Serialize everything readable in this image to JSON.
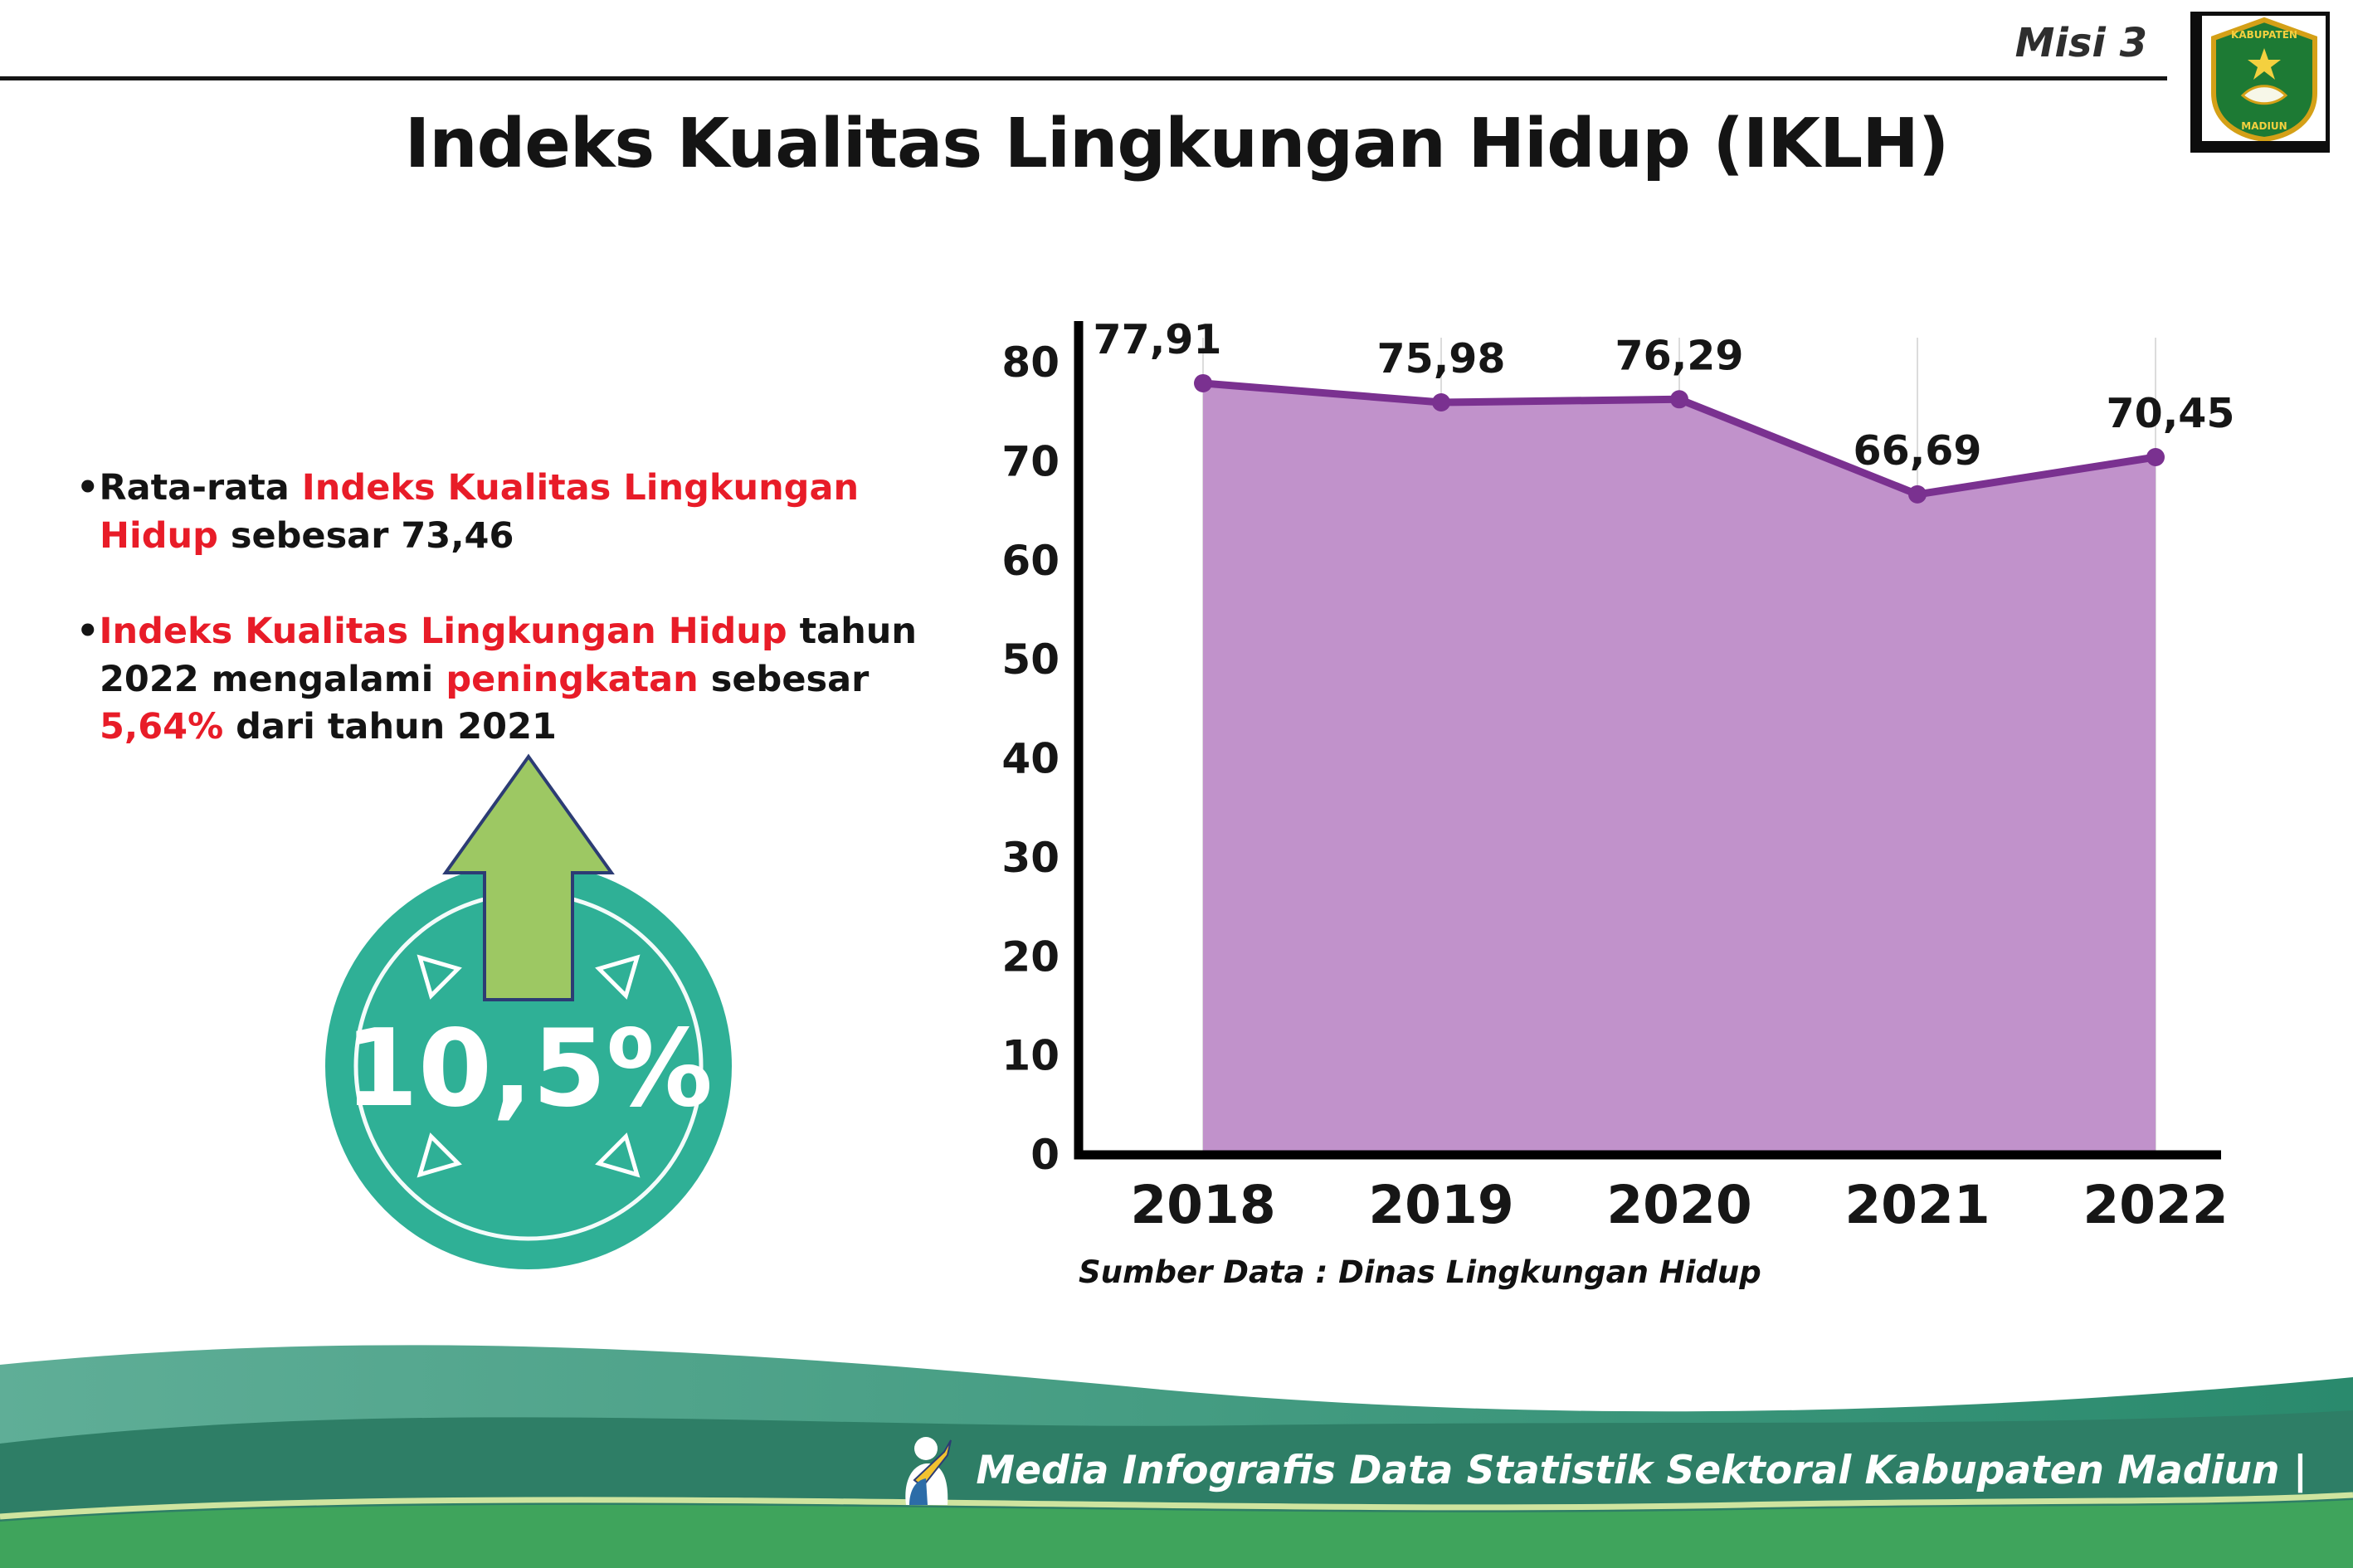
{
  "header": {
    "misi": "Misi 3",
    "title": "Indeks Kualitas Lingkungan Hidup (IKLH)",
    "logo": {
      "line1": "KABUPATEN",
      "line2": "MADIUN"
    }
  },
  "intro": {
    "bullet_char": "•",
    "items": [
      {
        "segments": [
          {
            "text": "Rata-rata "
          },
          {
            "text": "Indeks Kualitas Lingkungan Hidup"
          },
          {
            "text": " sebesar 73,46"
          }
        ]
      },
      {
        "segments": [
          {
            "text": "Indeks Kualitas Lingkungan Hidup"
          },
          {
            "text": " tahun 2022 mengalami "
          },
          {
            "text": "peningkatan"
          },
          {
            "text": " sebesar "
          },
          {
            "text": "5,64%"
          },
          {
            "text": " dari tahun 2021"
          }
        ]
      }
    ]
  },
  "badge": {
    "value": "10,5%"
  },
  "chart_data": {
    "type": "area",
    "title": "",
    "xlabel": "",
    "ylabel": "",
    "categories": [
      "2018",
      "2019",
      "2020",
      "2021",
      "2022"
    ],
    "values": [
      77.91,
      75.98,
      76.29,
      66.69,
      70.45
    ],
    "value_labels": [
      "77,91",
      "75,98",
      "76,29",
      "66,69",
      "70,45"
    ],
    "yticks": [
      0,
      10,
      20,
      30,
      40,
      50,
      60,
      70,
      80
    ],
    "ylim": [
      0,
      80
    ],
    "grid": true,
    "legend": "none",
    "line_color": "#7a3190",
    "fill_color": "#c192cb",
    "source": "Sumber Data : Dinas Lingkungan Hidup"
  },
  "footer": {
    "caption": "Media Infografis Data Statistik Sektoral Kabupaten Madiun |"
  },
  "colors": {
    "accent_red": "#e81c28",
    "badge_teal": "#2fb096",
    "arrow_green": "#9dc863",
    "line_purple": "#7a3190",
    "fill_purple": "#c192cb",
    "footer_dark_green": "#2e7e66",
    "footer_bright_green": "#3fa45c"
  }
}
